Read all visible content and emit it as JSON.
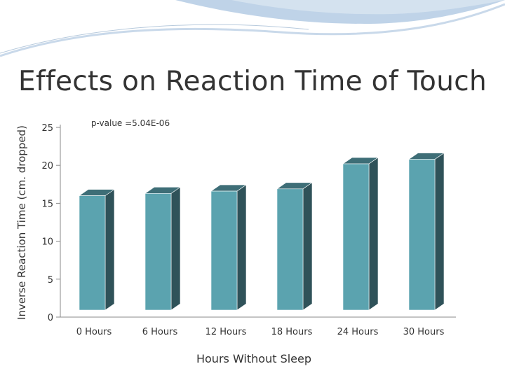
{
  "slide": {
    "title": "Effects on Reaction Time of Touch"
  },
  "colors": {
    "bar_front": "#5BA3AF",
    "bar_side": "#2F5259",
    "bar_top": "#3E6E77",
    "axis": "#888888",
    "header_swoosh": "#AFC8E2"
  },
  "chart_data": {
    "type": "bar",
    "categories": [
      "0 Hours",
      "6 Hours",
      "12 Hours",
      "18 Hours",
      "24 Hours",
      "30 Hours"
    ],
    "series": [
      {
        "values": [
          16,
          16.3,
          16.6,
          16.9,
          20.2,
          20.8
        ]
      }
    ],
    "ylim": [
      0,
      25
    ],
    "yticks": [
      0,
      5,
      10,
      15,
      20,
      25
    ],
    "xlabel": "Hours Without Sleep",
    "ylabel": "Inverse Reaction Time (cm. dropped)",
    "annotation": "p-value =5.04E-06",
    "grid": false,
    "style": "3d"
  }
}
